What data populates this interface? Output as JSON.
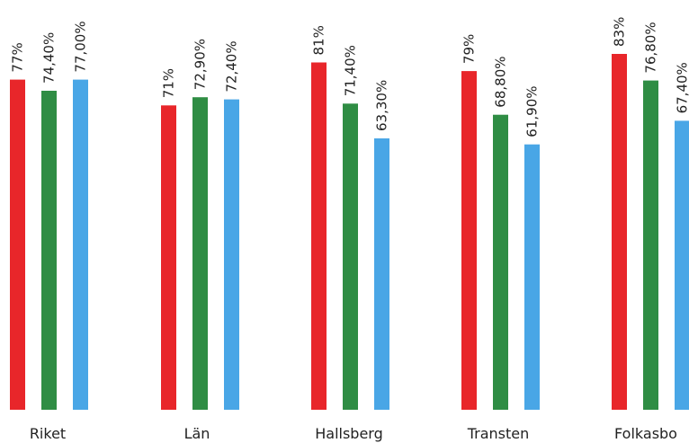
{
  "chart_data": {
    "type": "bar",
    "categories": [
      "Riket",
      "Län",
      "Hallsberg",
      "Transten",
      "Folkasbo"
    ],
    "series": [
      {
        "color": "#e8262a",
        "values": [
          77,
          71,
          81,
          79,
          83
        ],
        "labels": [
          "77%",
          "71%",
          "81%",
          "79%",
          "83%"
        ]
      },
      {
        "color": "#2f8d44",
        "values": [
          74.4,
          72.9,
          71.4,
          68.8,
          76.8
        ],
        "labels": [
          "74,40%",
          "72,90%",
          "71,40%",
          "68,80%",
          "76,80%"
        ]
      },
      {
        "color": "#49a6e6",
        "values": [
          77.0,
          72.4,
          63.3,
          61.9,
          67.4
        ],
        "labels": [
          "77,00%",
          "72,40%",
          "63,30%",
          "61,90%",
          "67,40%"
        ]
      }
    ],
    "title": "",
    "xlabel": "",
    "ylabel": "",
    "ylim": [
      0,
      83
    ],
    "grid": false,
    "legend": "none"
  }
}
